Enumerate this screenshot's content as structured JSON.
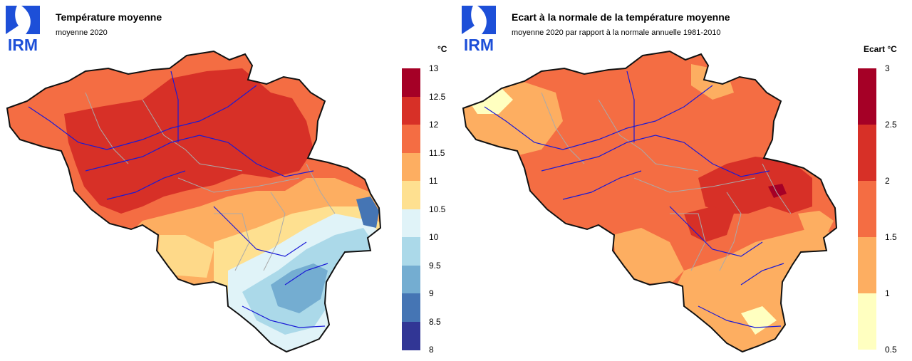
{
  "logo_text": "IRM",
  "colors": {
    "brand_blue": "#1d4fd8",
    "border": "#111111",
    "river": "#1a1ad6",
    "province": "#aaaaaa"
  },
  "panels": [
    {
      "title": "Température moyenne",
      "subtitle": "moyenne 2020",
      "unit": "°C",
      "legend": {
        "ticks": [
          "13",
          "12.5",
          "12",
          "11.5",
          "11",
          "10.5",
          "10",
          "9.5",
          "9",
          "8.5",
          "8"
        ],
        "colors_top_to_bottom": [
          "#a50026",
          "#d73027",
          "#f46d43",
          "#fdae61",
          "#fee090",
          "#e0f3f8",
          "#abd9e9",
          "#74add1",
          "#4575b4",
          "#313695"
        ]
      }
    },
    {
      "title": "Ecart à la normale de la température moyenne",
      "subtitle": "moyenne 2020 par rapport à la normale annuelle 1981-2010",
      "unit": "Ecart  °C",
      "legend": {
        "ticks": [
          "3",
          "2.5",
          "2",
          "1.5",
          "1",
          "0.5"
        ],
        "colors_top_to_bottom": [
          "#a50026",
          "#d73027",
          "#f46d43",
          "#fdae61",
          "#ffffc0"
        ]
      }
    }
  ]
}
